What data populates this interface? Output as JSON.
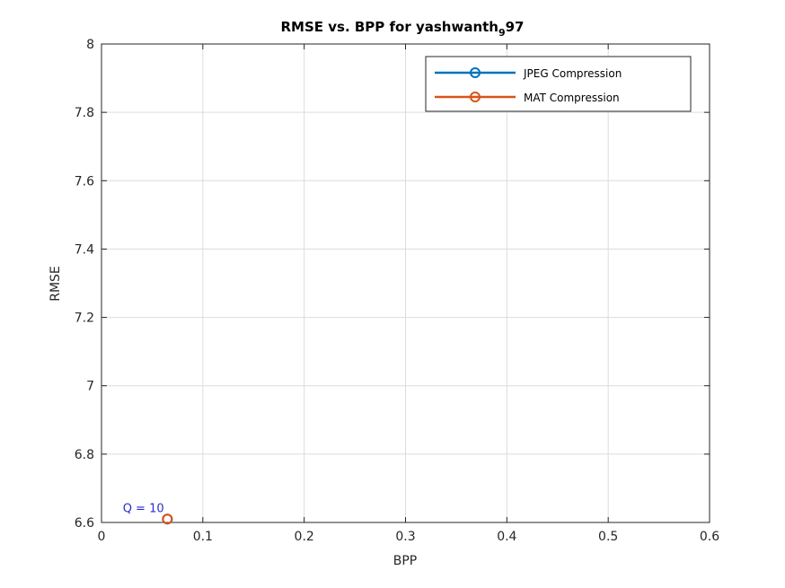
{
  "chart_data": {
    "type": "line",
    "title": "RMSE vs. BPP for yashwanth",
    "title_subscript": "9",
    "title_suffix": "97",
    "xlabel": "BPP",
    "ylabel": "RMSE",
    "xlim": [
      0,
      0.6
    ],
    "ylim": [
      6.6,
      8
    ],
    "xticks": [
      "0",
      "0.1",
      "0.2",
      "0.3",
      "0.4",
      "0.5",
      "0.6"
    ],
    "yticks": [
      "6.6",
      "6.8",
      "7",
      "7.2",
      "7.4",
      "7.6",
      "7.8",
      "8"
    ],
    "xtick_values": [
      0,
      0.1,
      0.2,
      0.3,
      0.4,
      0.5,
      0.6
    ],
    "ytick_values": [
      6.6,
      6.8,
      7.0,
      7.2,
      7.4,
      7.6,
      7.8,
      8.0
    ],
    "grid": true,
    "legend_position": "top-right",
    "series": [
      {
        "name": "JPEG Compression",
        "color": "#0072BD",
        "x": [
          0.065
        ],
        "y": [
          6.61
        ]
      },
      {
        "name": "MAT Compression",
        "color": "#D95319",
        "x": [
          0.065
        ],
        "y": [
          6.61
        ]
      }
    ],
    "annotations": [
      {
        "text": "Q = 10",
        "x": 0.021,
        "y": 6.63,
        "color": "#2b2bd6"
      }
    ]
  }
}
